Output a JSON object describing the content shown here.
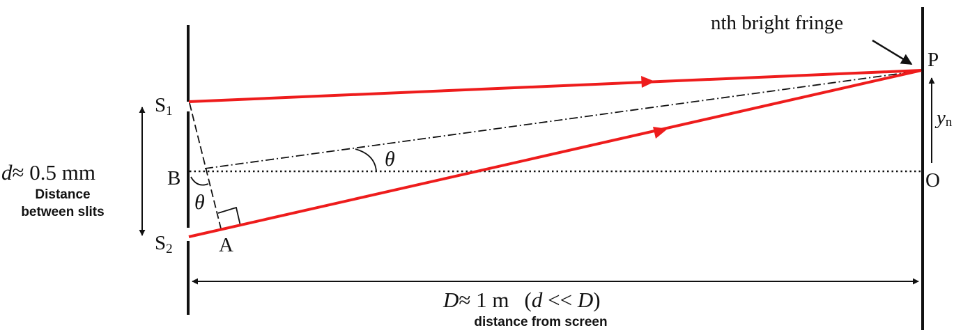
{
  "labels": {
    "callout": "nth bright fringe",
    "point_p": "P",
    "point_o": "O",
    "point_b": "B",
    "point_a": "A",
    "slit_1": "S",
    "slit_1_sub": "1",
    "slit_2": "S",
    "slit_2_sub": "2",
    "angle_main": "θ",
    "angle_small": "θ",
    "y_symbol": "y",
    "y_sub": "n",
    "d_symbol": "d",
    "d_value": "≈ 0.5 mm",
    "d_caption_line1": "Distance",
    "d_caption_line2": "between slits",
    "D_symbol": "D",
    "D_value": "≈ 1 m",
    "D_condition_open": "(",
    "D_condition_d": "d",
    "D_condition_op": " << ",
    "D_condition_D": "D",
    "D_condition_close": ")",
    "D_caption": "distance from screen"
  },
  "colors": {
    "ray": "#ee1c1c",
    "line": "#111111"
  }
}
